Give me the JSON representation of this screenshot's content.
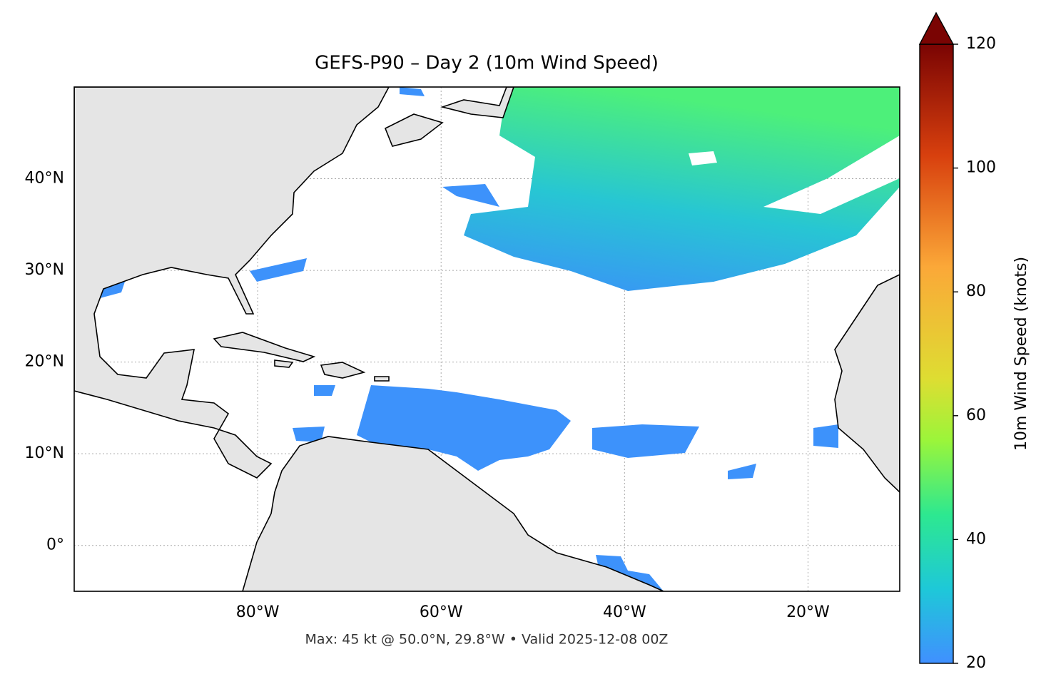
{
  "map": {
    "title": "GEFS-P90 – Day 2 (10m Wind Speed)",
    "footer": "Max: 45 kt @ 50.0°N, 29.8°W • Valid 2025-12-08 00Z",
    "xlim": [
      -100,
      -10
    ],
    "ylim": [
      -5,
      50
    ],
    "xticks": [
      {
        "value": -80,
        "label": "80°W"
      },
      {
        "value": -60,
        "label": "60°W"
      },
      {
        "value": -40,
        "label": "40°W"
      },
      {
        "value": -20,
        "label": "20°W"
      }
    ],
    "yticks": [
      {
        "value": 0,
        "label": "0°"
      },
      {
        "value": 10,
        "label": "10°N"
      },
      {
        "value": 20,
        "label": "20°N"
      },
      {
        "value": 30,
        "label": "30°N"
      },
      {
        "value": 40,
        "label": "40°N"
      }
    ],
    "grid": true,
    "colorbar": {
      "label": "10m Wind Speed (knots)",
      "lim": [
        20,
        120
      ],
      "ticks": [
        20,
        40,
        60,
        80,
        100,
        120
      ]
    }
  }
}
